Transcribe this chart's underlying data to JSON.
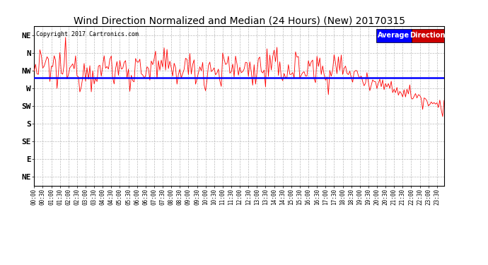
{
  "title": "Wind Direction Normalized and Median (24 Hours) (New) 20170315",
  "copyright": "Copyright 2017 Cartronics.com",
  "ytick_labels": [
    "NE",
    "N",
    "NW",
    "W",
    "SW",
    "S",
    "SE",
    "E",
    "NE"
  ],
  "ytick_values": [
    9,
    8,
    7,
    6,
    5,
    4,
    3,
    2,
    1
  ],
  "ylim": [
    0.5,
    9.5
  ],
  "avg_direction_level": 6.62,
  "line_color": "#ff0000",
  "avg_color": "#0000ff",
  "background_color": "#ffffff",
  "grid_color": "#bbbbbb",
  "title_fontsize": 10,
  "legend_box_blue": "#0000ff",
  "legend_box_red": "#cc0000",
  "legend_text_avg": "Average",
  "legend_text_dir": "Direction"
}
